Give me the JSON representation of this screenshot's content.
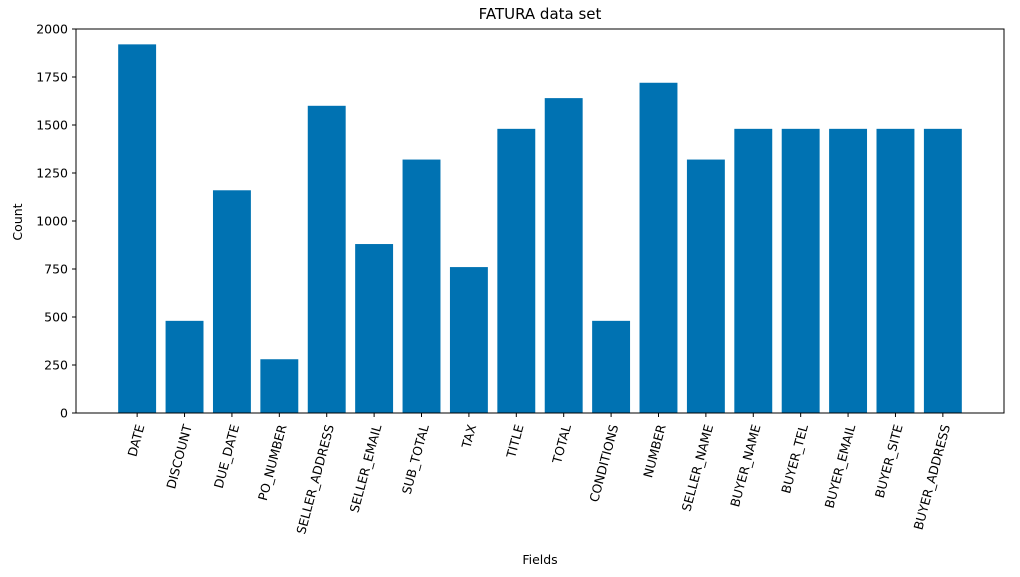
{
  "chart_data": {
    "type": "bar",
    "title": "FATURA data set",
    "xlabel": "Fields",
    "ylabel": "Count",
    "categories": [
      "DATE",
      "DISCOUNT",
      "DUE_DATE",
      "PO_NUMBER",
      "SELLER_ADDRESS",
      "SELLER_EMAIL",
      "SUB_TOTAL",
      "TAX",
      "TITLE",
      "TOTAL",
      "CONDITIONS",
      "NUMBER",
      "SELLER_NAME",
      "BUYER_NAME",
      "BUYER_TEL",
      "BUYER_EMAIL",
      "BUYER_SITE",
      "BUYER_ADDRESS"
    ],
    "values": [
      1920,
      480,
      1160,
      280,
      1600,
      880,
      1320,
      760,
      1480,
      1640,
      480,
      1720,
      1320,
      1480,
      1480,
      1480,
      1480,
      1480
    ],
    "ylim": [
      0,
      2000
    ],
    "yticks": [
      0,
      250,
      500,
      750,
      1000,
      1250,
      1500,
      1750,
      2000
    ],
    "bar_color": "#0072B2",
    "grid": false,
    "xtick_rotation_deg": 75
  }
}
